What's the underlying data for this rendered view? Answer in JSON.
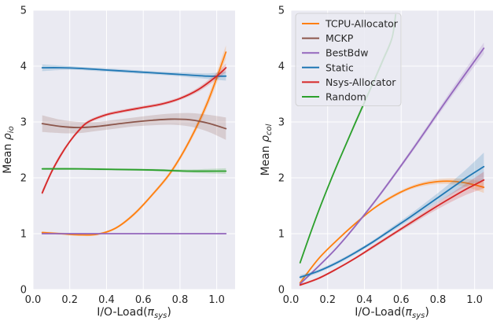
{
  "chart_data": [
    {
      "type": "line",
      "xlabel": "I/O-Load(πsys)",
      "xlabel_main": "I/O-Load(",
      "xlabel_sym": "π",
      "xlabel_sub": "sys",
      "xlabel_close": ")",
      "ylabel": "Mean ρio",
      "ylabel_main": "Mean ",
      "ylabel_sym": "ρ",
      "ylabel_sub": "io",
      "xlim": [
        0.0,
        1.1
      ],
      "ylim": [
        0,
        5
      ],
      "xticks": [
        "0.0",
        "0.2",
        "0.4",
        "0.6",
        "0.8",
        "1.0"
      ],
      "yticks": [
        "0",
        "1",
        "2",
        "3",
        "4",
        "5"
      ],
      "grid": true,
      "series": [
        {
          "name": "TCPU-Allocator",
          "color": "#ff7f0e",
          "x": [
            0.05,
            0.15,
            0.25,
            0.35,
            0.45,
            0.55,
            0.65,
            0.75,
            0.85,
            0.95,
            1.05
          ],
          "y": [
            1.02,
            1.0,
            0.98,
            0.99,
            1.1,
            1.35,
            1.7,
            2.1,
            2.65,
            3.35,
            4.25
          ],
          "band": [
            0.02,
            0.02,
            0.02,
            0.02,
            0.02,
            0.03,
            0.03,
            0.04,
            0.05,
            0.08,
            0.12
          ]
        },
        {
          "name": "MCKP",
          "color": "#8c564b",
          "x": [
            0.05,
            0.15,
            0.25,
            0.35,
            0.45,
            0.55,
            0.65,
            0.75,
            0.85,
            0.95,
            1.05
          ],
          "y": [
            2.97,
            2.92,
            2.9,
            2.92,
            2.96,
            3.0,
            3.03,
            3.05,
            3.04,
            2.98,
            2.88
          ],
          "band": [
            0.15,
            0.12,
            0.1,
            0.08,
            0.08,
            0.08,
            0.09,
            0.1,
            0.12,
            0.15,
            0.2
          ]
        },
        {
          "name": "BestBdw",
          "color": "#9467bd",
          "x": [
            0.05,
            0.25,
            0.45,
            0.65,
            0.85,
            1.05
          ],
          "y": [
            1.0,
            1.0,
            1.0,
            1.0,
            1.0,
            1.0
          ],
          "band": [
            0.01,
            0.01,
            0.01,
            0.01,
            0.01,
            0.01
          ]
        },
        {
          "name": "Static",
          "color": "#1f77b4",
          "x": [
            0.05,
            0.15,
            0.25,
            0.35,
            0.45,
            0.55,
            0.65,
            0.75,
            0.85,
            0.95,
            1.05
          ],
          "y": [
            3.97,
            3.97,
            3.96,
            3.94,
            3.92,
            3.9,
            3.88,
            3.86,
            3.84,
            3.82,
            3.82
          ],
          "band": [
            0.06,
            0.04,
            0.03,
            0.03,
            0.03,
            0.03,
            0.03,
            0.03,
            0.04,
            0.05,
            0.08
          ]
        },
        {
          "name": "Nsys-Allocator",
          "color": "#d62728",
          "x": [
            0.05,
            0.1,
            0.15,
            0.2,
            0.25,
            0.3,
            0.4,
            0.5,
            0.6,
            0.7,
            0.8,
            0.9,
            1.0,
            1.05
          ],
          "y": [
            1.73,
            2.1,
            2.4,
            2.65,
            2.85,
            3.0,
            3.13,
            3.2,
            3.26,
            3.32,
            3.42,
            3.58,
            3.82,
            3.97
          ],
          "band": [
            0.05,
            0.04,
            0.04,
            0.03,
            0.03,
            0.03,
            0.03,
            0.03,
            0.03,
            0.03,
            0.03,
            0.04,
            0.06,
            0.08
          ]
        },
        {
          "name": "Random",
          "color": "#2ca02c",
          "x": [
            0.05,
            0.25,
            0.45,
            0.65,
            0.85,
            1.05
          ],
          "y": [
            2.16,
            2.16,
            2.15,
            2.14,
            2.12,
            2.12
          ],
          "band": [
            0.02,
            0.02,
            0.02,
            0.02,
            0.03,
            0.05
          ]
        }
      ]
    },
    {
      "type": "line",
      "xlabel": "I/O-Load(πsys)",
      "xlabel_main": "I/O-Load(",
      "xlabel_sym": "π",
      "xlabel_sub": "sys",
      "xlabel_close": ")",
      "ylabel": "Mean ρcol",
      "ylabel_main": "Mean ",
      "ylabel_sym": "ρ",
      "ylabel_sub": "col",
      "xlim": [
        0.0,
        1.1
      ],
      "ylim": [
        0,
        5
      ],
      "xticks": [
        "0.0",
        "0.2",
        "0.4",
        "0.6",
        "0.8",
        "1.0"
      ],
      "yticks": [
        "0",
        "1",
        "2",
        "3",
        "4",
        "5"
      ],
      "grid": true,
      "legend": "top-left",
      "series": [
        {
          "name": "TCPU-Allocator",
          "color": "#ff7f0e",
          "x": [
            0.05,
            0.15,
            0.25,
            0.35,
            0.45,
            0.55,
            0.65,
            0.75,
            0.85,
            0.95,
            1.05
          ],
          "y": [
            0.12,
            0.55,
            0.88,
            1.18,
            1.45,
            1.66,
            1.82,
            1.91,
            1.94,
            1.91,
            1.83
          ],
          "band": [
            0.03,
            0.02,
            0.02,
            0.02,
            0.02,
            0.03,
            0.03,
            0.04,
            0.05,
            0.07,
            0.1
          ]
        },
        {
          "name": "MCKP",
          "color": "#8c564b",
          "x": [],
          "y": [],
          "band": []
        },
        {
          "name": "BestBdw",
          "color": "#9467bd",
          "x": [
            0.05,
            0.25,
            0.45,
            0.65,
            0.85,
            1.05
          ],
          "y": [
            0.1,
            0.75,
            1.55,
            2.45,
            3.4,
            4.32
          ],
          "band": [
            0.02,
            0.02,
            0.03,
            0.04,
            0.06,
            0.1
          ]
        },
        {
          "name": "Static",
          "color": "#1f77b4",
          "x": [
            0.05,
            0.15,
            0.25,
            0.35,
            0.45,
            0.55,
            0.65,
            0.75,
            0.85,
            0.95,
            1.05
          ],
          "y": [
            0.22,
            0.33,
            0.48,
            0.66,
            0.86,
            1.08,
            1.3,
            1.53,
            1.76,
            1.99,
            2.2
          ],
          "band": [
            0.04,
            0.03,
            0.03,
            0.03,
            0.03,
            0.04,
            0.05,
            0.07,
            0.1,
            0.15,
            0.25
          ]
        },
        {
          "name": "Nsys-Allocator",
          "color": "#d62728",
          "x": [
            0.05,
            0.15,
            0.25,
            0.35,
            0.45,
            0.55,
            0.65,
            0.75,
            0.85,
            0.95,
            1.05
          ],
          "y": [
            0.08,
            0.2,
            0.37,
            0.56,
            0.77,
            0.98,
            1.19,
            1.4,
            1.6,
            1.79,
            1.96
          ],
          "band": [
            0.02,
            0.02,
            0.02,
            0.02,
            0.03,
            0.03,
            0.04,
            0.05,
            0.07,
            0.1,
            0.15
          ]
        },
        {
          "name": "Random",
          "color": "#2ca02c",
          "x": [
            0.05,
            0.1,
            0.15,
            0.2,
            0.25,
            0.3,
            0.35,
            0.4,
            0.45,
            0.5,
            0.55,
            0.57
          ],
          "y": [
            0.48,
            0.95,
            1.4,
            1.82,
            2.22,
            2.6,
            2.98,
            3.35,
            3.72,
            4.1,
            4.5,
            4.92
          ],
          "band": [
            0.03,
            0.03,
            0.03,
            0.03,
            0.03,
            0.03,
            0.04,
            0.04,
            0.04,
            0.05,
            0.05,
            0.05
          ]
        }
      ]
    }
  ]
}
